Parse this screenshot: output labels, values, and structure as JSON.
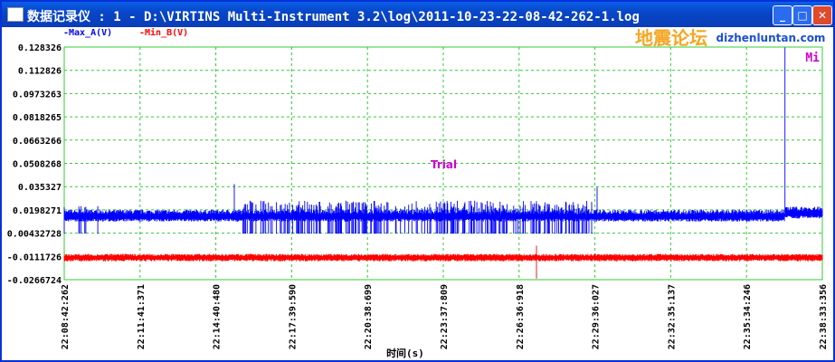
{
  "window": {
    "title": "数据记录仪 : 1 - D:\\VIRTINS Multi-Instrument 3.2\\log\\2011-10-23-22-08-42-262-1.log",
    "minimize": "_",
    "maximize": "□",
    "close": "✕"
  },
  "watermark": {
    "cn": "地震论坛",
    "url": "dizhenluntan.com"
  },
  "chart_data": {
    "type": "line",
    "legend": [
      "-Max_A(V)",
      "-Min_B(V)"
    ],
    "legend_placement": "top-left",
    "corner_label": "Mi",
    "annotation": "Trial",
    "xlabel": "时间(s)",
    "ylabel": "",
    "xticks": [
      "22:08:42:262",
      "22:11:41:371",
      "22:14:40:480",
      "22:17:39:590",
      "22:20:38:699",
      "22:23:37:809",
      "22:26:36:918",
      "22:29:36:027",
      "22:32:35:137",
      "22:35:34:246",
      "22:38:33:356"
    ],
    "yticks": [
      "0.128326",
      "0.112826",
      "0.0973263",
      "0.0818265",
      "0.0663266",
      "0.0508268",
      "0.035327",
      "0.0198271",
      "0.00432728",
      "-0.0111726",
      "-0.0266724"
    ],
    "ylim": [
      -0.0266724,
      0.128326
    ],
    "grid": true,
    "series": [
      {
        "name": "Max_A(V)",
        "color": "#0000ff",
        "baseline": 0.016,
        "noise_band": [
          0.004,
          0.026
        ],
        "spikes": [
          {
            "t": 0.224,
            "v": 0.037
          },
          {
            "t": 0.703,
            "v": 0.035
          },
          {
            "t": 0.951,
            "v": 0.128
          }
        ]
      },
      {
        "name": "Min_B(V)",
        "color": "#ff0000",
        "baseline": -0.012,
        "noise_band": [
          -0.014,
          -0.01
        ],
        "spikes": [
          {
            "t": 0.623,
            "v": -0.026
          },
          {
            "t": 0.623,
            "v": -0.004
          }
        ]
      }
    ],
    "colors": {
      "grid": "#33cc33",
      "axis": "#33cc33",
      "trial": "#cc00cc"
    }
  }
}
